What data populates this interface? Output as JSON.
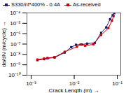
{
  "chart_data": {
    "type": "line",
    "xlabel": "Crack Length (m)",
    "ylabel": "da/dN (m/cycle)",
    "log": true,
    "grid": false,
    "legend": "upper left",
    "marker": "square",
    "xlim": [
      0.0008,
      0.12
    ],
    "ylim": [
      1e-10,
      0.0001
    ],
    "xticks": [
      {
        "value": 0.001,
        "label": "10⁻³"
      },
      {
        "value": 0.01,
        "label": "10⁻²"
      },
      {
        "value": 0.1,
        "label": "10⁻¹"
      }
    ],
    "yticks": [
      {
        "value": 1e-10,
        "label": "10⁻¹⁰"
      },
      {
        "value": 1e-09,
        "label": "10⁻⁹"
      },
      {
        "value": 1e-08,
        "label": "10⁻⁸"
      },
      {
        "value": 1e-07,
        "label": "10⁻⁷"
      },
      {
        "value": 1e-06,
        "label": "10⁻⁶"
      },
      {
        "value": 1e-05,
        "label": "10⁻⁵"
      },
      {
        "value": 0.0001,
        "label": "10⁻⁴"
      }
    ],
    "series": [
      {
        "name": "S330/nf*400% - 0.4A",
        "color": "#1A1A6E",
        "x": [
          0.0014,
          0.002,
          0.0024,
          0.0035,
          0.006,
          0.0085,
          0.011,
          0.015,
          0.02,
          0.03,
          0.042,
          0.055,
          0.068,
          0.078,
          0.085
        ],
        "values": [
          2.8e-09,
          3.5e-09,
          4.2e-09,
          5e-09,
          1.5e-08,
          5e-08,
          8.5e-08,
          9e-08,
          1.1e-07,
          1.3e-07,
          1.2e-06,
          4e-06,
          2.5e-05,
          6e-05,
          9.5e-05
        ]
      },
      {
        "name": "As-received",
        "color": "#CC0000",
        "x": [
          0.0014,
          0.002,
          0.0024,
          0.0035,
          0.006,
          0.0115,
          0.014,
          0.018,
          0.028,
          0.042,
          0.062,
          0.075,
          0.082
        ],
        "values": [
          3.2e-09,
          4e-09,
          4.5e-09,
          5.5e-09,
          1.8e-08,
          5.5e-08,
          9e-08,
          7e-08,
          9.5e-08,
          7.5e-07,
          3.5e-06,
          1.8e-05,
          5e-05
        ]
      }
    ]
  }
}
